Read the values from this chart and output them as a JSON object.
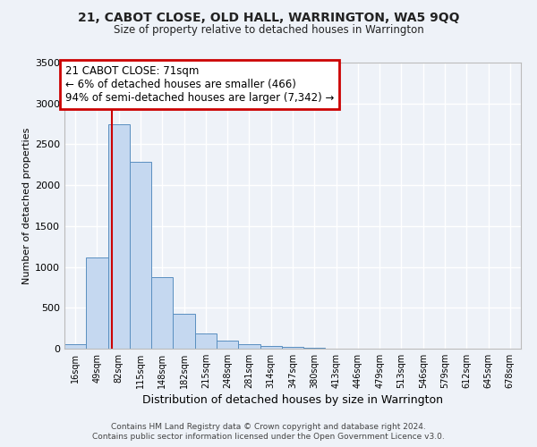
{
  "title_line1": "21, CABOT CLOSE, OLD HALL, WARRINGTON, WA5 9QQ",
  "title_line2": "Size of property relative to detached houses in Warrington",
  "xlabel": "Distribution of detached houses by size in Warrington",
  "ylabel": "Number of detached properties",
  "bar_color": "#c5d8f0",
  "bar_edge_color": "#5a8fc0",
  "bin_labels": [
    "16sqm",
    "49sqm",
    "82sqm",
    "115sqm",
    "148sqm",
    "182sqm",
    "215sqm",
    "248sqm",
    "281sqm",
    "314sqm",
    "347sqm",
    "380sqm",
    "413sqm",
    "446sqm",
    "479sqm",
    "513sqm",
    "546sqm",
    "579sqm",
    "612sqm",
    "645sqm",
    "678sqm"
  ],
  "bar_values": [
    55,
    1120,
    2740,
    2290,
    870,
    430,
    185,
    100,
    55,
    35,
    20,
    10,
    5,
    3,
    2,
    1,
    1,
    1,
    1,
    1,
    1
  ],
  "ylim": [
    0,
    3500
  ],
  "yticks": [
    0,
    500,
    1000,
    1500,
    2000,
    2500,
    3000,
    3500
  ],
  "property_line_x": 71,
  "annotation_text_line1": "21 CABOT CLOSE: 71sqm",
  "annotation_text_line2": "← 6% of detached houses are smaller (466)",
  "annotation_text_line3": "94% of semi-detached houses are larger (7,342) →",
  "footnote1": "Contains HM Land Registry data © Crown copyright and database right 2024.",
  "footnote2": "Contains public sector information licensed under the Open Government Licence v3.0.",
  "background_color": "#eef2f8",
  "grid_color": "#ffffff",
  "red_line_color": "#cc0000",
  "annotation_box_color": "#ffffff",
  "annotation_box_edge_color": "#cc0000"
}
